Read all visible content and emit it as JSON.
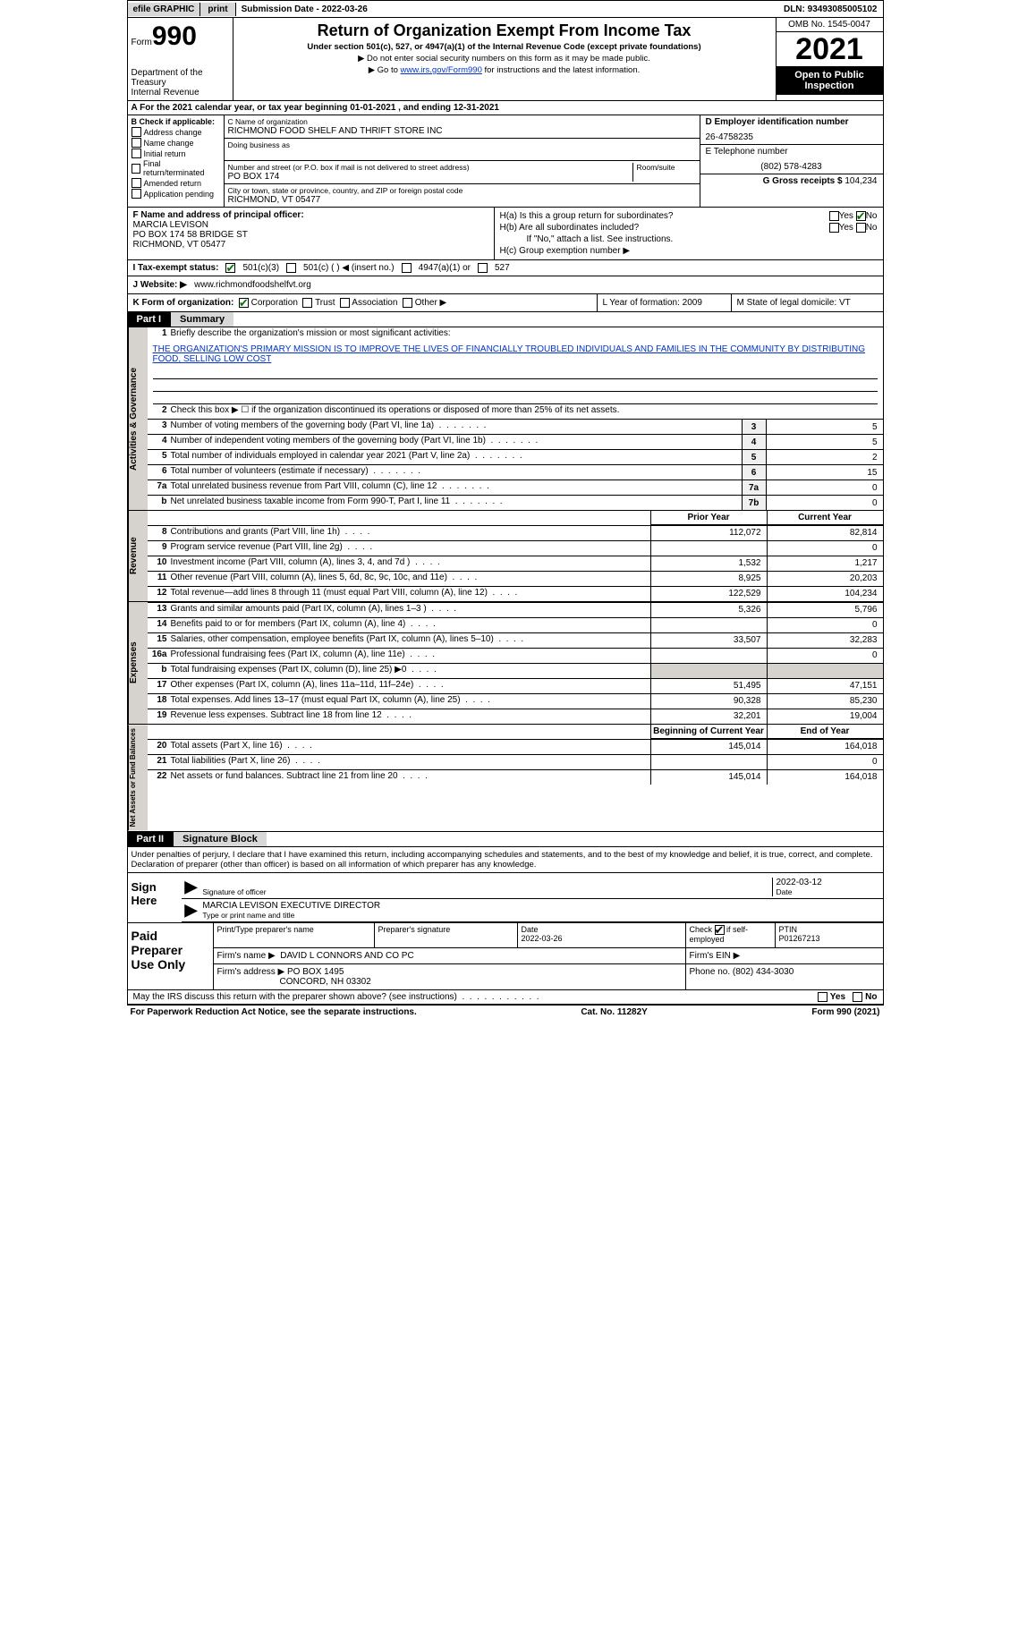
{
  "topbar": {
    "efile": "efile GRAPHIC",
    "print": "print",
    "submission": "Submission Date - 2022-03-26",
    "dln": "DLN: 93493085005102"
  },
  "header": {
    "form_word": "Form",
    "form_num": "990",
    "dept": "Department of the Treasury",
    "irs": "Internal Revenue Service",
    "title": "Return of Organization Exempt From Income Tax",
    "subtitle": "Under section 501(c), 527, or 4947(a)(1) of the Internal Revenue Code (except private foundations)",
    "note1": "▶ Do not enter social security numbers on this form as it may be made public.",
    "note2_pre": "▶ Go to ",
    "note2_link": "www.irs.gov/Form990",
    "note2_post": " for instructions and the latest information.",
    "omb": "OMB No. 1545-0047",
    "year": "2021",
    "inspection": "Open to Public Inspection"
  },
  "row_a": "A For the 2021 calendar year, or tax year beginning 01-01-2021    , and ending 12-31-2021",
  "box_b": {
    "label": "B Check if applicable:",
    "items": [
      "Address change",
      "Name change",
      "Initial return",
      "Final return/terminated",
      "Amended return",
      "Application pending"
    ]
  },
  "box_c": {
    "name_lbl": "C Name of organization",
    "name": "RICHMOND FOOD SHELF AND THRIFT STORE INC",
    "dba_lbl": "Doing business as",
    "addr_lbl": "Number and street (or P.O. box if mail is not delivered to street address)",
    "room_lbl": "Room/suite",
    "addr": "PO BOX 174",
    "city_lbl": "City or town, state or province, country, and ZIP or foreign postal code",
    "city": "RICHMOND, VT  05477"
  },
  "box_d": {
    "ein_lbl": "D Employer identification number",
    "ein": "26-4758235",
    "phone_lbl": "E Telephone number",
    "phone": "(802) 578-4283",
    "gross_lbl": "G Gross receipts $",
    "gross": "104,234"
  },
  "box_f": {
    "lbl": "F Name and address of principal officer:",
    "name": "MARCIA LEVISON",
    "addr1": "PO BOX 174 58 BRIDGE ST",
    "addr2": "RICHMOND, VT  05477"
  },
  "box_h": {
    "ha": "H(a)  Is this a group return for subordinates?",
    "hb": "H(b)  Are all subordinates included?",
    "hb_note": "If \"No,\" attach a list. See instructions.",
    "hc": "H(c)  Group exemption number ▶",
    "yes": "Yes",
    "no": "No"
  },
  "row_i": {
    "lbl": "I   Tax-exempt status:",
    "o1": "501(c)(3)",
    "o2": "501(c) (   ) ◀ (insert no.)",
    "o3": "4947(a)(1) or",
    "o4": "527"
  },
  "row_j": {
    "lbl": "J   Website: ▶",
    "url": "www.richmondfoodshelfvt.org"
  },
  "row_k": {
    "lbl": "K Form of organization:",
    "corp": "Corporation",
    "trust": "Trust",
    "assoc": "Association",
    "other": "Other ▶",
    "l": "L Year of formation: 2009",
    "m": "M State of legal domicile: VT"
  },
  "part1": {
    "tag": "Part I",
    "title": "Summary"
  },
  "summary": {
    "l1_lbl": "Briefly describe the organization's mission or most significant activities:",
    "mission": "THE ORGANIZATION'S PRIMARY MISSION IS TO IMPROVE THE LIVES OF FINANCIALLY TROUBLED INDIVIDUALS AND FAMILIES IN THE COMMUNITY BY DISTRIBUTING FOOD, SELLING LOW COST",
    "l2": "Check this box ▶ ☐  if the organization discontinued its operations or disposed of more than 25% of its net assets.",
    "rows_num": [
      {
        "n": "3",
        "d": "Number of voting members of the governing body (Part VI, line 1a)",
        "box": "3",
        "v": "5"
      },
      {
        "n": "4",
        "d": "Number of independent voting members of the governing body (Part VI, line 1b)",
        "box": "4",
        "v": "5"
      },
      {
        "n": "5",
        "d": "Total number of individuals employed in calendar year 2021 (Part V, line 2a)",
        "box": "5",
        "v": "2"
      },
      {
        "n": "6",
        "d": "Total number of volunteers (estimate if necessary)",
        "box": "6",
        "v": "15"
      },
      {
        "n": "7a",
        "d": "Total unrelated business revenue from Part VIII, column (C), line 12",
        "box": "7a",
        "v": "0"
      },
      {
        "n": "b",
        "d": "Net unrelated business taxable income from Form 990-T, Part I, line 11",
        "box": "7b",
        "v": "0"
      }
    ],
    "prior_hdr": "Prior Year",
    "curr_hdr": "Current Year",
    "rev_rows": [
      {
        "n": "8",
        "d": "Contributions and grants (Part VIII, line 1h)",
        "p": "112,072",
        "c": "82,814"
      },
      {
        "n": "9",
        "d": "Program service revenue (Part VIII, line 2g)",
        "p": "",
        "c": "0"
      },
      {
        "n": "10",
        "d": "Investment income (Part VIII, column (A), lines 3, 4, and 7d )",
        "p": "1,532",
        "c": "1,217"
      },
      {
        "n": "11",
        "d": "Other revenue (Part VIII, column (A), lines 5, 6d, 8c, 9c, 10c, and 11e)",
        "p": "8,925",
        "c": "20,203"
      },
      {
        "n": "12",
        "d": "Total revenue—add lines 8 through 11 (must equal Part VIII, column (A), line 12)",
        "p": "122,529",
        "c": "104,234"
      }
    ],
    "exp_rows": [
      {
        "n": "13",
        "d": "Grants and similar amounts paid (Part IX, column (A), lines 1–3 )",
        "p": "5,326",
        "c": "5,796"
      },
      {
        "n": "14",
        "d": "Benefits paid to or for members (Part IX, column (A), line 4)",
        "p": "",
        "c": "0"
      },
      {
        "n": "15",
        "d": "Salaries, other compensation, employee benefits (Part IX, column (A), lines 5–10)",
        "p": "33,507",
        "c": "32,283"
      },
      {
        "n": "16a",
        "d": "Professional fundraising fees (Part IX, column (A), line 11e)",
        "p": "",
        "c": "0"
      },
      {
        "n": "b",
        "d": "Total fundraising expenses (Part IX, column (D), line 25) ▶0",
        "p": "GRAY",
        "c": "GRAY"
      },
      {
        "n": "17",
        "d": "Other expenses (Part IX, column (A), lines 11a–11d, 11f–24e)",
        "p": "51,495",
        "c": "47,151"
      },
      {
        "n": "18",
        "d": "Total expenses. Add lines 13–17 (must equal Part IX, column (A), line 25)",
        "p": "90,328",
        "c": "85,230"
      },
      {
        "n": "19",
        "d": "Revenue less expenses. Subtract line 18 from line 12",
        "p": "32,201",
        "c": "19,004"
      }
    ],
    "net_hdr_p": "Beginning of Current Year",
    "net_hdr_c": "End of Year",
    "net_rows": [
      {
        "n": "20",
        "d": "Total assets (Part X, line 16)",
        "p": "145,014",
        "c": "164,018"
      },
      {
        "n": "21",
        "d": "Total liabilities (Part X, line 26)",
        "p": "",
        "c": "0"
      },
      {
        "n": "22",
        "d": "Net assets or fund balances. Subtract line 21 from line 20",
        "p": "145,014",
        "c": "164,018"
      }
    ],
    "vtab_ag": "Activities & Governance",
    "vtab_rev": "Revenue",
    "vtab_exp": "Expenses",
    "vtab_net": "Net Assets or Fund Balances"
  },
  "part2": {
    "tag": "Part II",
    "title": "Signature Block"
  },
  "sig": {
    "decl": "Under penalties of perjury, I declare that I have examined this return, including accompanying schedules and statements, and to the best of my knowledge and belief, it is true, correct, and complete. Declaration of preparer (other than officer) is based on all information of which preparer has any knowledge.",
    "sign_here": "Sign Here",
    "sig_officer": "Signature of officer",
    "date": "Date",
    "date_val": "2022-03-12",
    "name_title": "MARCIA LEVISON  EXECUTIVE DIRECTOR",
    "name_title_lbl": "Type or print name and title"
  },
  "prep": {
    "lbl": "Paid Preparer Use Only",
    "print_lbl": "Print/Type preparer's name",
    "sig_lbl": "Preparer's signature",
    "date_lbl": "Date",
    "date_val": "2022-03-26",
    "check_lbl": "Check ☑ if self-employed",
    "ptin_lbl": "PTIN",
    "ptin": "P01267213",
    "firm_name_lbl": "Firm's name   ▶",
    "firm_name": "DAVID L CONNORS AND CO PC",
    "firm_ein_lbl": "Firm's EIN ▶",
    "firm_addr_lbl": "Firm's address ▶",
    "firm_addr1": "PO BOX 1495",
    "firm_addr2": "CONCORD, NH  03302",
    "phone_lbl": "Phone no.",
    "phone": "(802) 434-3030"
  },
  "discuss": {
    "q": "May the IRS discuss this return with the preparer shown above? (see instructions)",
    "yes": "Yes",
    "no": "No"
  },
  "footer": {
    "pra": "For Paperwork Reduction Act Notice, see the separate instructions.",
    "cat": "Cat. No. 11282Y",
    "form": "Form 990 (2021)"
  },
  "colors": {
    "link": "#0033cc",
    "check_green": "#027502",
    "gray_tab": "#d6d3ce",
    "gray_btn": "#d8d8d8"
  }
}
